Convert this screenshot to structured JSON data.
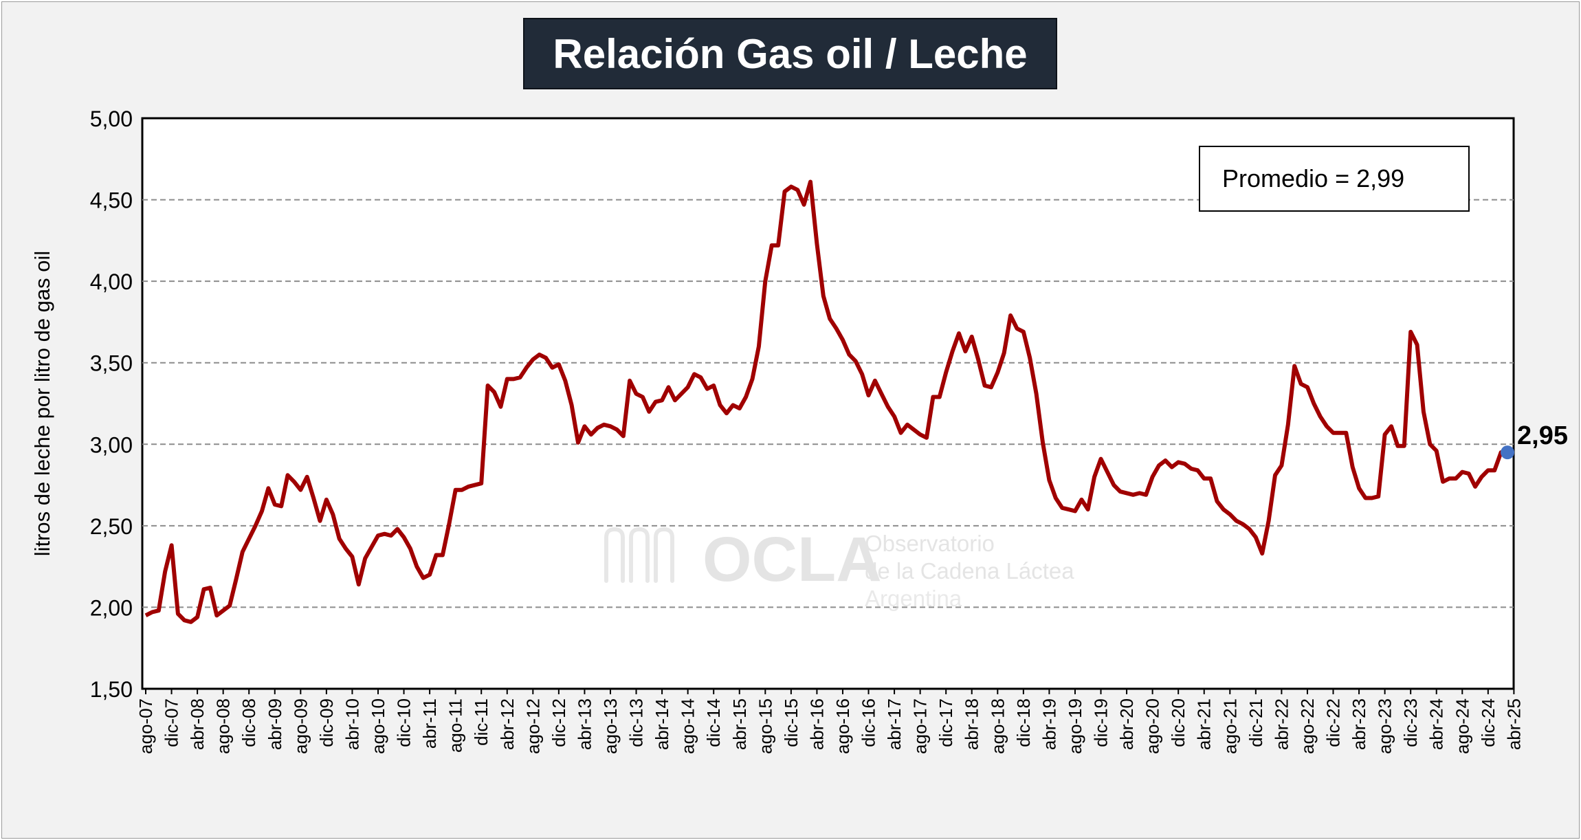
{
  "chart_data": {
    "type": "line",
    "title": "Relación Gas oil / Leche",
    "ylabel": "litros de leche por litro de gas oil",
    "xlabel": "",
    "ylim": [
      1.5,
      5.0
    ],
    "yticks": [
      "1,50",
      "2,00",
      "2,50",
      "3,00",
      "3,50",
      "4,00",
      "4,50",
      "5,00"
    ],
    "ytick_values": [
      1.5,
      2.0,
      2.5,
      3.0,
      3.5,
      4.0,
      4.5,
      5.0
    ],
    "grid": "horizontal dashed",
    "start_month": "ago-07",
    "end_month": "abr-25",
    "x_tick_labels": [
      "ago-07",
      "dic-07",
      "abr-08",
      "ago-08",
      "dic-08",
      "abr-09",
      "ago-09",
      "dic-09",
      "abr-10",
      "ago-10",
      "dic-10",
      "abr-11",
      "ago-11",
      "dic-11",
      "abr-12",
      "ago-12",
      "dic-12",
      "abr-13",
      "ago-13",
      "dic-13",
      "abr-14",
      "ago-14",
      "dic-14",
      "abr-15",
      "ago-15",
      "dic-15",
      "abr-16",
      "ago-16",
      "dic-16",
      "abr-17",
      "ago-17",
      "dic-17",
      "abr-18",
      "ago-18",
      "dic-18",
      "abr-19",
      "ago-19",
      "dic-19",
      "abr-20",
      "ago-20",
      "dic-20",
      "abr-21",
      "ago-21",
      "dic-21",
      "abr-22",
      "ago-22",
      "dic-22",
      "abr-23",
      "ago-23",
      "dic-23",
      "abr-24",
      "ago-24",
      "dic-24",
      "abr-25"
    ],
    "series": [
      {
        "color": "#a00000",
        "values": [
          1.95,
          1.97,
          1.98,
          2.22,
          2.38,
          1.96,
          1.92,
          1.91,
          1.94,
          2.11,
          2.12,
          1.95,
          1.98,
          2.01,
          2.17,
          2.34,
          2.42,
          2.5,
          2.59,
          2.73,
          2.63,
          2.62,
          2.81,
          2.77,
          2.72,
          2.8,
          2.67,
          2.53,
          2.66,
          2.57,
          2.42,
          2.36,
          2.31,
          2.14,
          2.3,
          2.37,
          2.44,
          2.45,
          2.44,
          2.48,
          2.43,
          2.36,
          2.25,
          2.18,
          2.2,
          2.32,
          2.32,
          2.51,
          2.72,
          2.72,
          2.74,
          2.75,
          2.76,
          3.36,
          3.32,
          3.23,
          3.4,
          3.4,
          3.41,
          3.47,
          3.52,
          3.55,
          3.53,
          3.47,
          3.49,
          3.39,
          3.24,
          3.01,
          3.11,
          3.06,
          3.1,
          3.12,
          3.11,
          3.09,
          3.05,
          3.39,
          3.31,
          3.29,
          3.2,
          3.26,
          3.27,
          3.35,
          3.27,
          3.31,
          3.35,
          3.43,
          3.41,
          3.34,
          3.36,
          3.24,
          3.19,
          3.24,
          3.22,
          3.29,
          3.4,
          3.6,
          4.0,
          4.22,
          4.22,
          4.55,
          4.58,
          4.56,
          4.47,
          4.61,
          4.23,
          3.91,
          3.77,
          3.71,
          3.64,
          3.55,
          3.51,
          3.43,
          3.3,
          3.39,
          3.31,
          3.23,
          3.17,
          3.07,
          3.12,
          3.09,
          3.06,
          3.04,
          3.29,
          3.29,
          3.44,
          3.57,
          3.68,
          3.57,
          3.66,
          3.52,
          3.36,
          3.35,
          3.44,
          3.56,
          3.79,
          3.71,
          3.69,
          3.53,
          3.31,
          3.01,
          2.78,
          2.67,
          2.61,
          2.6,
          2.59,
          2.66,
          2.6,
          2.8,
          2.91,
          2.83,
          2.75,
          2.71,
          2.7,
          2.69,
          2.7,
          2.69,
          2.8,
          2.87,
          2.9,
          2.86,
          2.89,
          2.88,
          2.85,
          2.84,
          2.79,
          2.79,
          2.65,
          2.6,
          2.57,
          2.53,
          2.51,
          2.48,
          2.43,
          2.33,
          2.53,
          2.81,
          2.87,
          3.12,
          3.48,
          3.37,
          3.35,
          3.25,
          3.17,
          3.11,
          3.07,
          3.07,
          3.07,
          2.86,
          2.73,
          2.67,
          2.67,
          2.68,
          3.06,
          3.11,
          2.99,
          2.99,
          3.69,
          3.61,
          3.2,
          3.0,
          2.96,
          2.77,
          2.79,
          2.79,
          2.83,
          2.82,
          2.74,
          2.8,
          2.84,
          2.84,
          2.95,
          2.95
        ]
      }
    ],
    "average_label": "Promedio = 2,99",
    "last_value_label": "2,95",
    "last_point_color": "#4472c4"
  },
  "watermark": {
    "logo_text": "OCLA",
    "line1": "Observatorio",
    "line2": "de la Cadena Láctea",
    "line3": "Argentina"
  }
}
